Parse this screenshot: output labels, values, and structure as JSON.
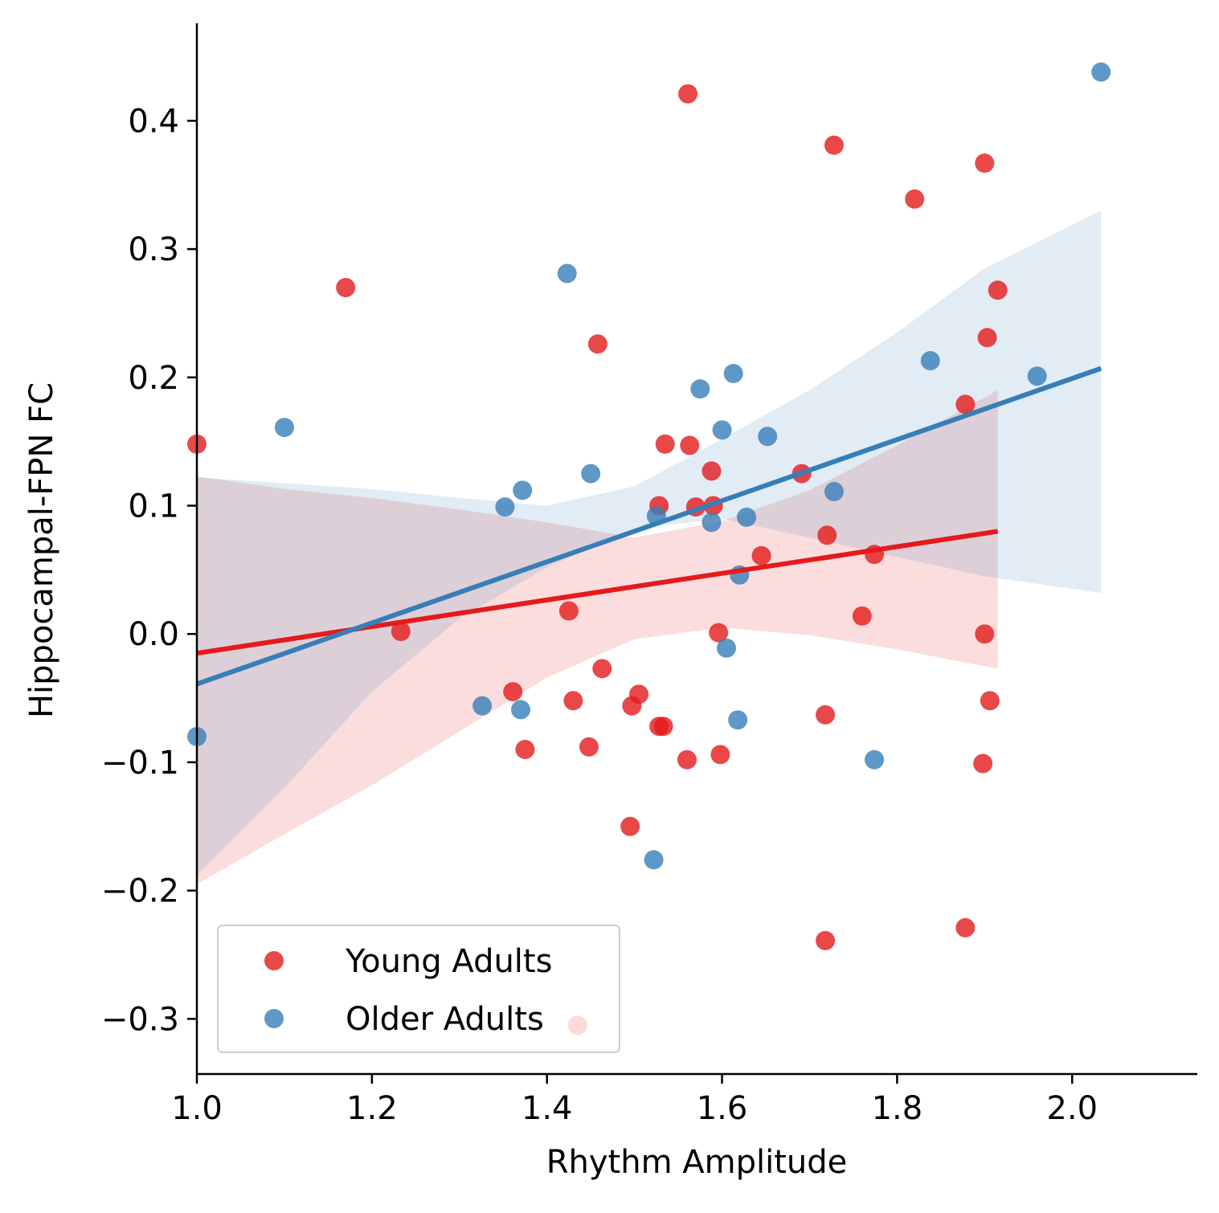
{
  "chart_data": {
    "type": "scatter",
    "xlabel": "Rhythm Amplitude",
    "ylabel": "Hippocampal-FPN FC",
    "xlim": [
      1.0,
      2.143
    ],
    "ylim": [
      -0.343,
      0.476
    ],
    "xticks": [
      1.0,
      1.2,
      1.4,
      1.6,
      1.8,
      2.0
    ],
    "xtick_labels": [
      "1.0",
      "1.2",
      "1.4",
      "1.6",
      "1.8",
      "2.0"
    ],
    "yticks": [
      -0.3,
      -0.2,
      -0.1,
      0.0,
      0.1,
      0.2,
      0.3,
      0.4
    ],
    "ytick_labels": [
      "−0.3",
      "−0.2",
      "−0.1",
      "0.0",
      "0.1",
      "0.2",
      "0.3",
      "0.4"
    ],
    "grid": false,
    "legend_position": "lower-left",
    "series": [
      {
        "name": "Young Adults",
        "color": "#e41a1c",
        "points": [
          [
            1.0,
            0.148
          ],
          [
            1.17,
            0.27
          ],
          [
            1.233,
            0.002
          ],
          [
            1.425,
            0.018
          ],
          [
            1.43,
            -0.052
          ],
          [
            1.435,
            -0.305
          ],
          [
            1.448,
            -0.088
          ],
          [
            1.458,
            0.226
          ],
          [
            1.463,
            -0.027
          ],
          [
            1.361,
            -0.045
          ],
          [
            1.375,
            -0.09
          ],
          [
            1.497,
            -0.056
          ],
          [
            1.505,
            -0.047
          ],
          [
            1.495,
            -0.15
          ],
          [
            1.528,
            -0.072
          ],
          [
            1.533,
            -0.072
          ],
          [
            1.528,
            0.1
          ],
          [
            1.535,
            0.148
          ],
          [
            1.561,
            0.421
          ],
          [
            1.563,
            0.147
          ],
          [
            1.57,
            0.099
          ],
          [
            1.588,
            0.127
          ],
          [
            1.59,
            0.1
          ],
          [
            1.596,
            0.001
          ],
          [
            1.56,
            -0.098
          ],
          [
            1.598,
            -0.094
          ],
          [
            1.645,
            0.061
          ],
          [
            1.691,
            0.125
          ],
          [
            1.72,
            0.077
          ],
          [
            1.728,
            0.381
          ],
          [
            1.718,
            -0.063
          ],
          [
            1.76,
            0.014
          ],
          [
            1.774,
            0.062
          ],
          [
            1.82,
            0.339
          ],
          [
            1.878,
            0.179
          ],
          [
            1.878,
            -0.229
          ],
          [
            1.9,
            0.367
          ],
          [
            1.898,
            -0.101
          ],
          [
            1.9,
            0.0
          ],
          [
            1.903,
            0.231
          ],
          [
            1.906,
            -0.052
          ],
          [
            1.915,
            0.268
          ],
          [
            1.718,
            -0.239
          ]
        ],
        "fit": {
          "x": [
            1.0,
            1.915
          ],
          "y": [
            -0.015,
            0.08
          ]
        },
        "ci_upper": [
          [
            1.0,
            0.123
          ],
          [
            1.1,
            0.113
          ],
          [
            1.2,
            0.106
          ],
          [
            1.3,
            0.097
          ],
          [
            1.4,
            0.087
          ],
          [
            1.5,
            0.075
          ],
          [
            1.6,
            0.088
          ],
          [
            1.7,
            0.112
          ],
          [
            1.8,
            0.147
          ],
          [
            1.915,
            0.19
          ]
        ],
        "ci_lower": [
          [
            1.0,
            -0.195
          ],
          [
            1.1,
            -0.156
          ],
          [
            1.2,
            -0.118
          ],
          [
            1.3,
            -0.076
          ],
          [
            1.4,
            -0.034
          ],
          [
            1.5,
            -0.004
          ],
          [
            1.6,
            0.005
          ],
          [
            1.7,
            -0.001
          ],
          [
            1.8,
            -0.012
          ],
          [
            1.915,
            -0.027
          ]
        ]
      },
      {
        "name": "Older Adults",
        "color": "#377eb8",
        "points": [
          [
            1.0,
            -0.08
          ],
          [
            1.1,
            0.161
          ],
          [
            1.326,
            -0.056
          ],
          [
            1.352,
            0.099
          ],
          [
            1.37,
            -0.059
          ],
          [
            1.372,
            0.112
          ],
          [
            1.423,
            0.281
          ],
          [
            1.45,
            0.125
          ],
          [
            1.522,
            -0.176
          ],
          [
            1.525,
            0.092
          ],
          [
            1.575,
            0.191
          ],
          [
            1.588,
            0.087
          ],
          [
            1.6,
            0.159
          ],
          [
            1.605,
            -0.011
          ],
          [
            1.613,
            0.203
          ],
          [
            1.618,
            -0.067
          ],
          [
            1.62,
            0.046
          ],
          [
            1.628,
            0.091
          ],
          [
            1.652,
            0.154
          ],
          [
            1.728,
            0.111
          ],
          [
            1.774,
            -0.098
          ],
          [
            1.838,
            0.213
          ],
          [
            1.96,
            0.201
          ],
          [
            2.033,
            0.438
          ]
        ],
        "fit": {
          "x": [
            1.0,
            2.033
          ],
          "y": [
            -0.039,
            0.207
          ]
        },
        "ci_upper": [
          [
            1.0,
            0.122
          ],
          [
            1.2,
            0.113
          ],
          [
            1.3,
            0.106
          ],
          [
            1.4,
            0.1
          ],
          [
            1.5,
            0.115
          ],
          [
            1.6,
            0.152
          ],
          [
            1.7,
            0.19
          ],
          [
            1.8,
            0.235
          ],
          [
            1.9,
            0.285
          ],
          [
            2.033,
            0.33
          ]
        ],
        "ci_lower": [
          [
            1.0,
            -0.188
          ],
          [
            1.1,
            -0.12
          ],
          [
            1.2,
            -0.045
          ],
          [
            1.3,
            0.012
          ],
          [
            1.4,
            0.052
          ],
          [
            1.5,
            0.082
          ],
          [
            1.6,
            0.09
          ],
          [
            1.7,
            0.075
          ],
          [
            1.8,
            0.06
          ],
          [
            1.9,
            0.045
          ],
          [
            2.033,
            0.032
          ]
        ]
      }
    ]
  }
}
